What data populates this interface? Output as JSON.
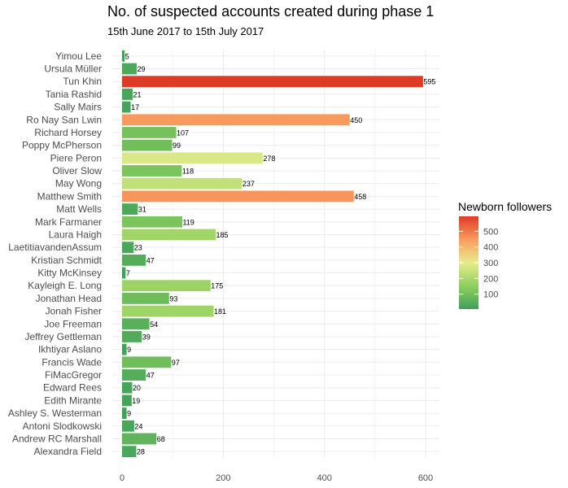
{
  "title": "No. of suspected accounts created during phase 1",
  "subtitle": "15th June 2017 to 15th July 2017",
  "chart_data": {
    "type": "bar",
    "orientation": "horizontal",
    "title": "No. of suspected accounts created during phase 1",
    "subtitle": "15th June 2017 to 15th July 2017",
    "xlabel": "",
    "ylabel": "",
    "xlim": [
      0,
      620
    ],
    "x_ticks": [
      0,
      200,
      400,
      600
    ],
    "grid": true,
    "legend_position": "right",
    "categories": [
      "Yimou Lee",
      "Ursula Müller",
      "Tun Khin",
      "Tania Rashid",
      "Sally Mairs",
      "Ro Nay San Lwin",
      "Richard Horsey",
      "Poppy McPherson",
      "Piere Peron",
      "Oliver Slow",
      "May Wong",
      "Matthew Smith",
      "Matt Wells",
      "Mark Farmaner",
      "Laura Haigh",
      "LaetitiavandenAssum",
      "Kristian Schmidt",
      "Kitty McKinsey",
      "Kayleigh E. Long",
      "Jonathan Head",
      "Jonah Fisher",
      "Joe Freeman",
      "Jeffrey Gettleman",
      "Ikhtiyar Aslano",
      "Francis Wade",
      "FiMacGregor",
      "Edward Rees",
      "Edith Mirante",
      "Ashley S. Westerman",
      "Antoni Slodkowski",
      "Andrew RC Marshall",
      "Alexandra Field"
    ],
    "values": [
      5,
      29,
      595,
      21,
      17,
      450,
      107,
      99,
      278,
      118,
      237,
      458,
      31,
      119,
      185,
      23,
      47,
      7,
      175,
      93,
      181,
      54,
      39,
      9,
      97,
      47,
      20,
      19,
      9,
      24,
      68,
      28
    ],
    "color_legend": {
      "title": "Newborn followers",
      "ticks": [
        100,
        200,
        300,
        400,
        500
      ],
      "range": [
        5,
        595
      ],
      "colors": [
        "#3fa05a",
        "#8ecf5c",
        "#e8ec8f",
        "#f99c5e",
        "#de3b26"
      ]
    }
  }
}
